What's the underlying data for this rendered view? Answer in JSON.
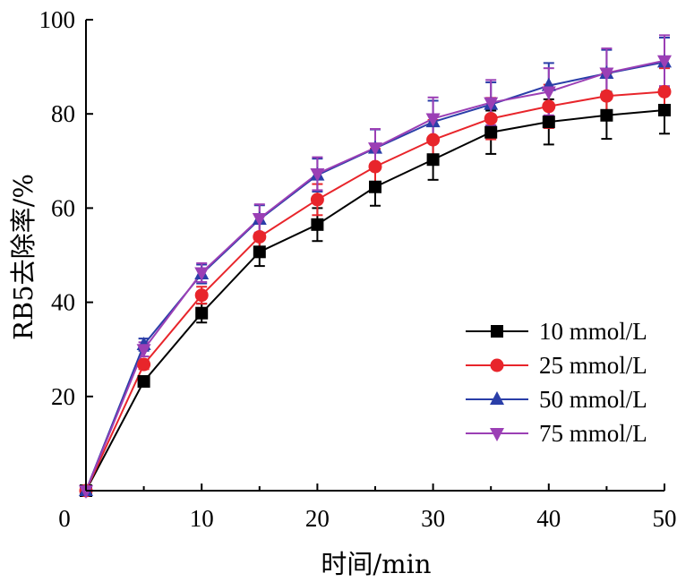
{
  "chart_data": {
    "type": "line",
    "title": "",
    "xlabel": "时间/min",
    "ylabel": "RB5去除率/%",
    "xlim": [
      0,
      50
    ],
    "ylim": [
      0,
      100
    ],
    "x_ticks": [
      10,
      20,
      30,
      40,
      50
    ],
    "y_ticks": [
      20,
      40,
      60,
      80,
      100
    ],
    "origin_label": "0",
    "grid": false,
    "legend_position": "lower-right",
    "x": [
      0,
      5,
      10,
      15,
      20,
      25,
      30,
      35,
      40,
      45,
      50
    ],
    "series": [
      {
        "name": "10 mmol/L",
        "color": "#000000",
        "marker": "square",
        "values": [
          0,
          23.2,
          37.7,
          50.7,
          56.5,
          64.5,
          70.3,
          76.1,
          78.3,
          79.7,
          80.8
        ],
        "errors": [
          0,
          1.0,
          2.0,
          3.0,
          3.5,
          4.0,
          4.3,
          4.6,
          4.8,
          5.0,
          5.0
        ]
      },
      {
        "name": "25 mmol/L",
        "color": "#e8252b",
        "marker": "circle",
        "values": [
          0,
          26.8,
          41.5,
          53.9,
          61.8,
          68.8,
          74.5,
          79.0,
          81.6,
          83.8,
          84.7
        ],
        "errors": [
          0,
          1.0,
          1.8,
          2.8,
          3.3,
          3.8,
          4.2,
          4.4,
          4.6,
          4.8,
          5.0
        ]
      },
      {
        "name": "50 mmol/L",
        "color": "#2a3ea8",
        "marker": "triangle-up",
        "values": [
          0,
          31.0,
          46.0,
          57.6,
          67.0,
          72.7,
          78.3,
          82.0,
          86.0,
          88.6,
          91.0
        ],
        "errors": [
          0,
          1.3,
          2.0,
          3.0,
          3.5,
          4.0,
          4.5,
          4.7,
          4.8,
          5.0,
          5.2
        ]
      },
      {
        "name": "75 mmol/L",
        "color": "#9b3fb5",
        "marker": "triangle-down",
        "values": [
          0,
          30.0,
          46.3,
          57.8,
          67.3,
          72.8,
          79.0,
          82.4,
          84.7,
          88.7,
          91.3
        ],
        "errors": [
          0,
          1.5,
          2.0,
          3.0,
          3.5,
          4.0,
          4.5,
          4.8,
          5.0,
          5.2,
          5.4
        ]
      }
    ]
  }
}
